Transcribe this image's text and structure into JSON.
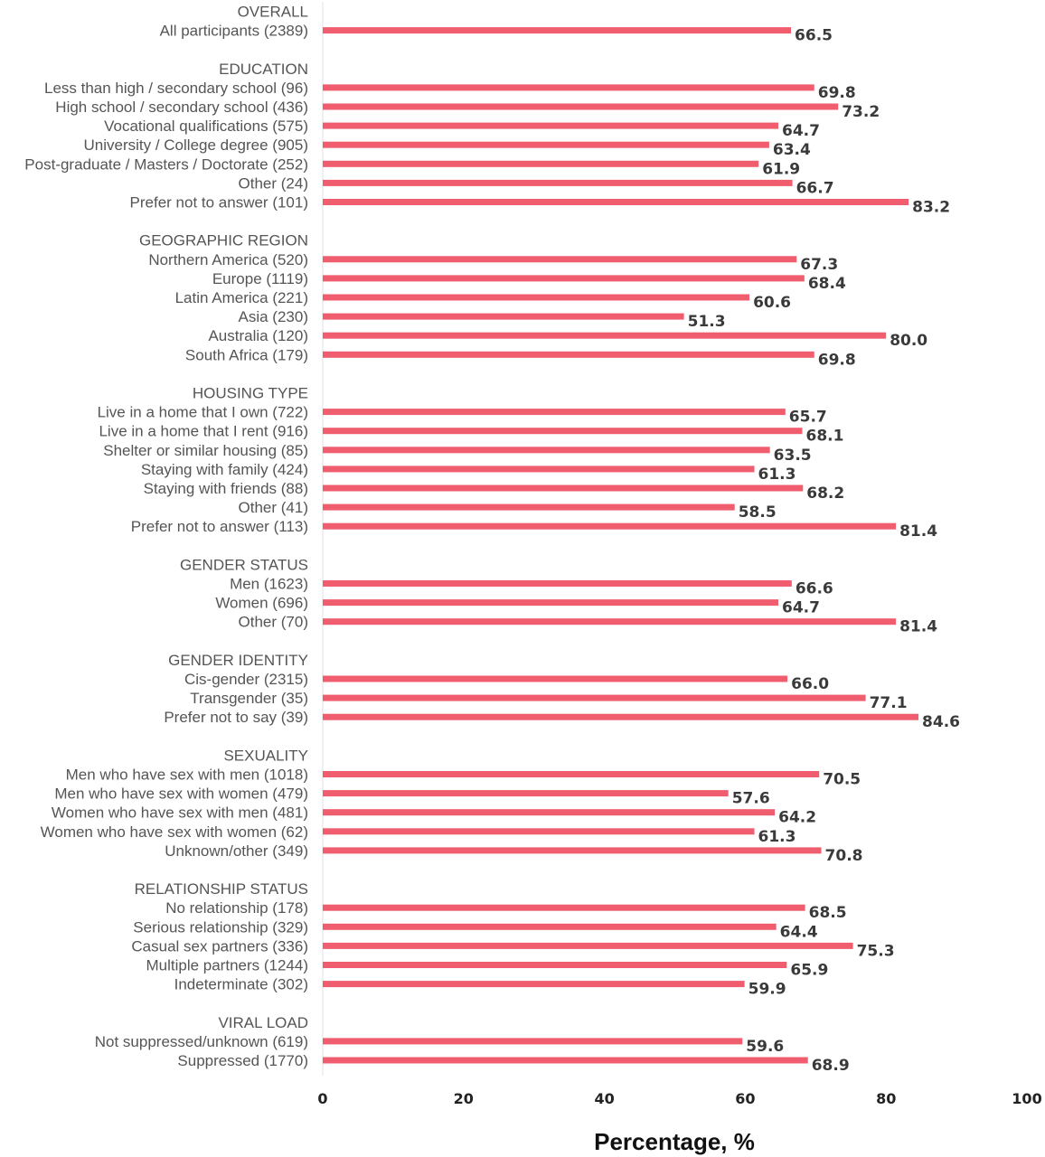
{
  "chart_data": {
    "type": "bar",
    "orientation": "horizontal",
    "xlabel": "Percentage, %",
    "xlim": [
      0,
      100
    ],
    "xticks": [
      "0",
      "20",
      "40",
      "60",
      "80",
      "100"
    ],
    "grid": false,
    "bar_color": "#f05d6e",
    "groups": [
      {
        "name": "OVERALL",
        "items": [
          {
            "label": "All participants (2389)",
            "value": 66.5,
            "value_label": "66.5"
          }
        ]
      },
      {
        "name": "EDUCATION",
        "items": [
          {
            "label": "Less than high / secondary school (96)",
            "value": 69.8,
            "value_label": "69.8"
          },
          {
            "label": "High school / secondary school (436)",
            "value": 73.2,
            "value_label": "73.2"
          },
          {
            "label": "Vocational qualifications (575)",
            "value": 64.7,
            "value_label": "64.7"
          },
          {
            "label": "University / College degree (905)",
            "value": 63.4,
            "value_label": "63.4"
          },
          {
            "label": "Post-graduate / Masters / Doctorate (252)",
            "value": 61.9,
            "value_label": "61.9"
          },
          {
            "label": "Other (24)",
            "value": 66.7,
            "value_label": "66.7"
          },
          {
            "label": "Prefer not to answer (101)",
            "value": 83.2,
            "value_label": "83.2"
          }
        ]
      },
      {
        "name": "GEOGRAPHIC REGION",
        "items": [
          {
            "label": "Northern America (520)",
            "value": 67.3,
            "value_label": "67.3"
          },
          {
            "label": "Europe (1119)",
            "value": 68.4,
            "value_label": "68.4"
          },
          {
            "label": "Latin America (221)",
            "value": 60.6,
            "value_label": "60.6"
          },
          {
            "label": "Asia (230)",
            "value": 51.3,
            "value_label": "51.3"
          },
          {
            "label": "Australia (120)",
            "value": 80.0,
            "value_label": "80.0"
          },
          {
            "label": "South Africa (179)",
            "value": 69.8,
            "value_label": "69.8"
          }
        ]
      },
      {
        "name": "HOUSING TYPE",
        "items": [
          {
            "label": "Live in a home that I own (722)",
            "value": 65.7,
            "value_label": "65.7"
          },
          {
            "label": "Live in a home that I rent (916)",
            "value": 68.1,
            "value_label": "68.1"
          },
          {
            "label": "Shelter or similar housing (85)",
            "value": 63.5,
            "value_label": "63.5"
          },
          {
            "label": "Staying with family (424)",
            "value": 61.3,
            "value_label": "61.3"
          },
          {
            "label": "Staying with friends (88)",
            "value": 68.2,
            "value_label": "68.2"
          },
          {
            "label": "Other (41)",
            "value": 58.5,
            "value_label": "58.5"
          },
          {
            "label": "Prefer not to answer (113)",
            "value": 81.4,
            "value_label": "81.4"
          }
        ]
      },
      {
        "name": "GENDER STATUS",
        "items": [
          {
            "label": "Men (1623)",
            "value": 66.6,
            "value_label": "66.6"
          },
          {
            "label": "Women (696)",
            "value": 64.7,
            "value_label": "64.7"
          },
          {
            "label": "Other (70)",
            "value": 81.4,
            "value_label": "81.4"
          }
        ]
      },
      {
        "name": "GENDER IDENTITY",
        "items": [
          {
            "label": "Cis-gender (2315)",
            "value": 66.0,
            "value_label": "66.0"
          },
          {
            "label": "Transgender (35)",
            "value": 77.1,
            "value_label": "77.1"
          },
          {
            "label": "Prefer not to say (39)",
            "value": 84.6,
            "value_label": "84.6"
          }
        ]
      },
      {
        "name": "SEXUALITY",
        "items": [
          {
            "label": "Men who have sex with men (1018)",
            "value": 70.5,
            "value_label": "70.5"
          },
          {
            "label": "Men who have sex with women (479)",
            "value": 57.6,
            "value_label": "57.6"
          },
          {
            "label": "Women who have sex with men (481)",
            "value": 64.2,
            "value_label": "64.2"
          },
          {
            "label": "Women who have sex with women (62)",
            "value": 61.3,
            "value_label": "61.3"
          },
          {
            "label": "Unknown/other (349)",
            "value": 70.8,
            "value_label": "70.8"
          }
        ]
      },
      {
        "name": "RELATIONSHIP STATUS",
        "items": [
          {
            "label": "No relationship (178)",
            "value": 68.5,
            "value_label": "68.5"
          },
          {
            "label": "Serious relationship (329)",
            "value": 64.4,
            "value_label": "64.4"
          },
          {
            "label": "Casual sex partners (336)",
            "value": 75.3,
            "value_label": "75.3"
          },
          {
            "label": "Multiple partners (1244)",
            "value": 65.9,
            "value_label": "65.9"
          },
          {
            "label": "Indeterminate (302)",
            "value": 59.9,
            "value_label": "59.9"
          }
        ]
      },
      {
        "name": "VIRAL LOAD",
        "items": [
          {
            "label": "Not suppressed/unknown (619)",
            "value": 59.6,
            "value_label": "59.6"
          },
          {
            "label": "Suppressed (1770)",
            "value": 68.9,
            "value_label": "68.9"
          }
        ]
      }
    ]
  }
}
